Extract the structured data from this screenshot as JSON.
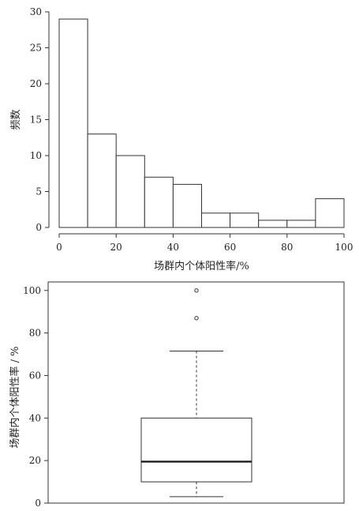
{
  "chart_data": [
    {
      "type": "bar",
      "subtype": "histogram",
      "bin_edges": [
        0,
        10,
        20,
        30,
        40,
        50,
        60,
        70,
        80,
        90,
        100
      ],
      "values": [
        29,
        13,
        10,
        7,
        6,
        2,
        2,
        1,
        1,
        4
      ],
      "xlabel": "场群内个体阳性率/%",
      "ylabel": "频数",
      "xlim": [
        0,
        100
      ],
      "ylim": [
        0,
        30
      ],
      "xticks": [
        0,
        20,
        40,
        60,
        80,
        100
      ],
      "yticks": [
        0,
        5,
        10,
        15,
        20,
        25,
        30
      ],
      "fill": "#ffffff",
      "stroke": "#333333"
    },
    {
      "type": "boxplot",
      "ylabel": "场群内个体阳性率 / %",
      "ylim": [
        0,
        104
      ],
      "yticks": [
        0,
        20,
        40,
        60,
        80,
        100
      ],
      "stats": {
        "whisker_low": 3,
        "q1": 10,
        "median": 19.5,
        "q3": 40,
        "whisker_high": 71.5
      },
      "outliers": [
        87,
        100
      ],
      "stroke": "#333333"
    }
  ]
}
